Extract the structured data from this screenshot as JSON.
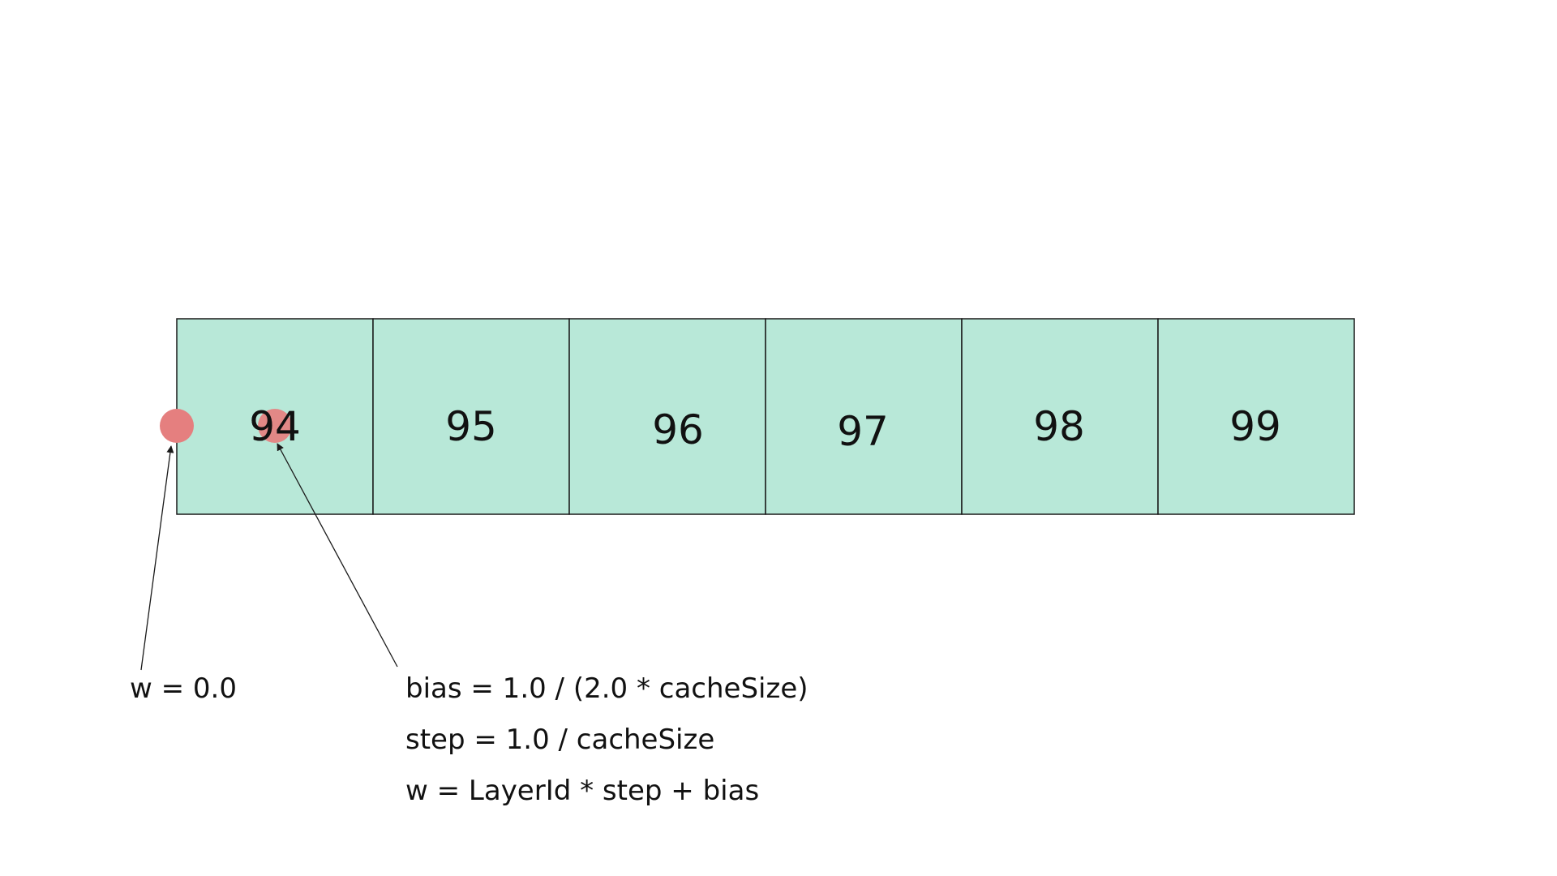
{
  "diagram": {
    "cells": [
      {
        "label": "94"
      },
      {
        "label": "95"
      },
      {
        "label": "96"
      },
      {
        "label": "97"
      },
      {
        "label": "98"
      },
      {
        "label": "99"
      }
    ],
    "annotations": {
      "left_edge": "w = 0.0",
      "formulas": [
        "bias = 1.0 / (2.0 * cacheSize)",
        "step = 1.0 / cacheSize",
        "w = LayerId * step + bias"
      ]
    },
    "colors": {
      "cell_fill": "#b8e8d8",
      "cell_stroke": "#1a1a1a",
      "marker": "#e57f7f"
    }
  }
}
